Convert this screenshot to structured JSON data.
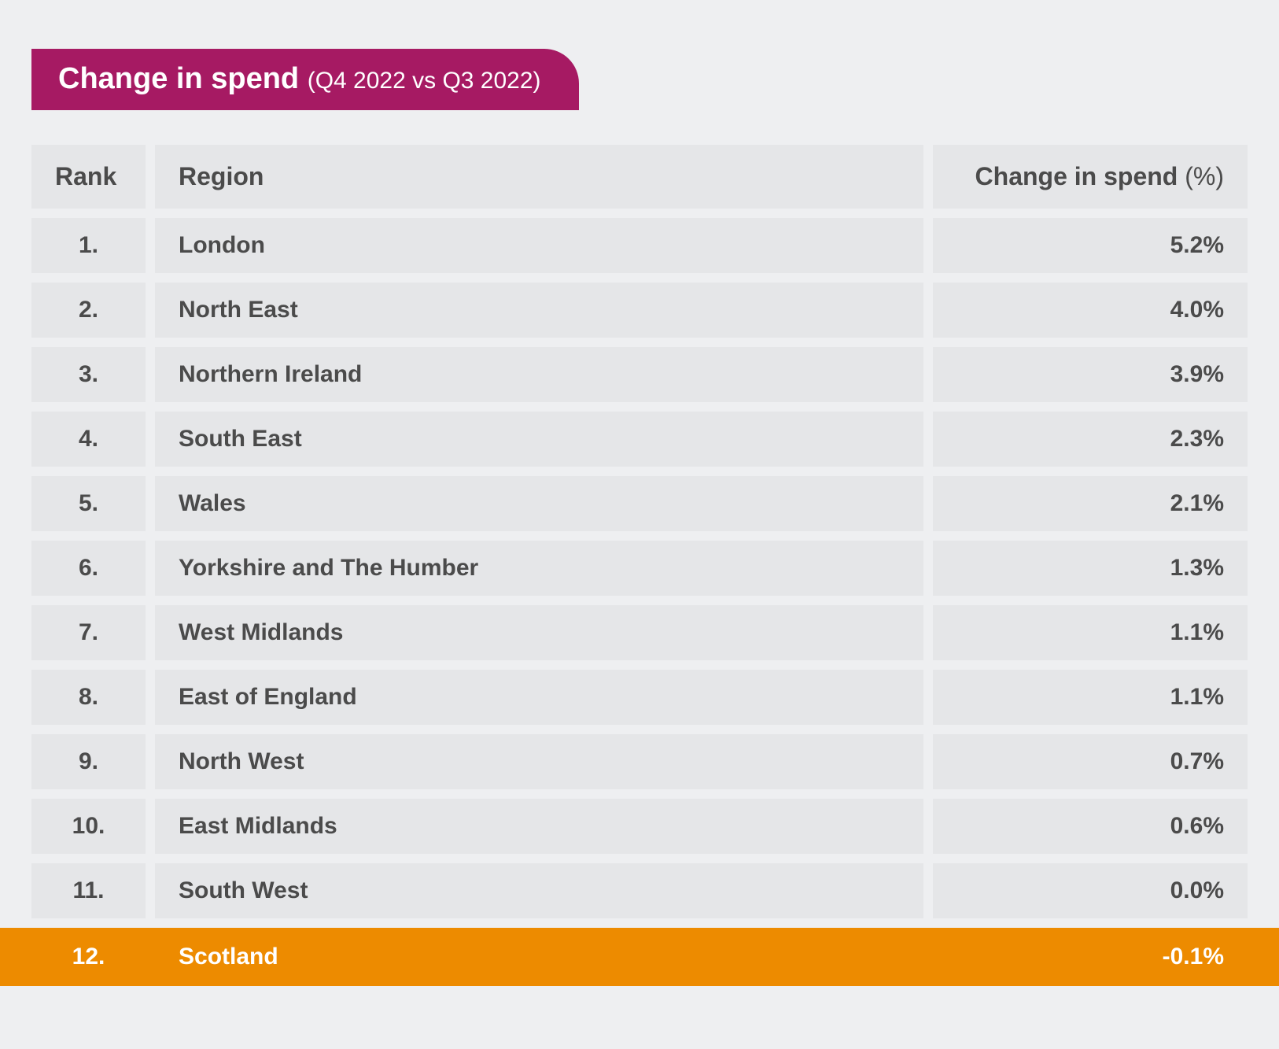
{
  "title": {
    "main": "Change in spend",
    "sub": "(Q4 2022 vs Q3 2022)"
  },
  "columns": {
    "rank": "Rank",
    "region": "Region",
    "change_label": "Change in spend",
    "change_unit": "(%)"
  },
  "highlight_color": "#ed8b00",
  "accent_color": "#a61a63",
  "background_color": "#eeeff1",
  "cell_background": "#e5e6e8",
  "text_color": "#4b4b4b",
  "rows": [
    {
      "rank": "1.",
      "region": "London",
      "change": "5.2%",
      "highlight": false
    },
    {
      "rank": "2.",
      "region": "North East",
      "change": "4.0%",
      "highlight": false
    },
    {
      "rank": "3.",
      "region": "Northern Ireland",
      "change": "3.9%",
      "highlight": false
    },
    {
      "rank": "4.",
      "region": "South East",
      "change": "2.3%",
      "highlight": false
    },
    {
      "rank": "5.",
      "region": "Wales",
      "change": "2.1%",
      "highlight": false
    },
    {
      "rank": "6.",
      "region": "Yorkshire and The Humber",
      "change": "1.3%",
      "highlight": false
    },
    {
      "rank": "7.",
      "region": "West Midlands",
      "change": "1.1%",
      "highlight": false
    },
    {
      "rank": "8.",
      "region": "East of England",
      "change": "1.1%",
      "highlight": false
    },
    {
      "rank": "9.",
      "region": "North West",
      "change": "0.7%",
      "highlight": false
    },
    {
      "rank": "10.",
      "region": "East Midlands",
      "change": "0.6%",
      "highlight": false
    },
    {
      "rank": "11.",
      "region": "South West",
      "change": "0.0%",
      "highlight": false
    },
    {
      "rank": "12.",
      "region": "Scotland",
      "change": "-0.1%",
      "highlight": true
    }
  ]
}
